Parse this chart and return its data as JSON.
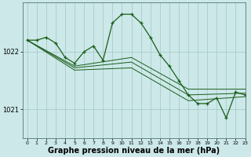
{
  "background_color": "#cce8e8",
  "grid_color": "#aacccc",
  "line_color": "#1a5e1a",
  "xlabel": "Graphe pression niveau de la mer (hPa)",
  "xlabel_fontsize": 7,
  "ylabel_ticks": [
    1021,
    1022
  ],
  "xlim": [
    -0.5,
    23
  ],
  "ylim": [
    1020.5,
    1022.85
  ],
  "xticks": [
    0,
    1,
    2,
    3,
    4,
    5,
    6,
    7,
    8,
    9,
    10,
    11,
    12,
    13,
    14,
    15,
    16,
    17,
    18,
    19,
    20,
    21,
    22,
    23
  ],
  "series": [
    {
      "x": [
        0,
        1,
        2,
        3,
        4,
        5,
        6,
        7,
        8,
        9,
        10,
        11,
        12,
        13,
        14,
        15,
        16,
        17,
        18,
        19,
        20,
        21,
        22,
        23
      ],
      "y": [
        1022.2,
        1022.2,
        1022.25,
        1022.15,
        1021.9,
        1021.8,
        1022.0,
        1022.1,
        1021.85,
        1022.5,
        1022.65,
        1022.65,
        1022.5,
        1022.25,
        1021.95,
        1021.75,
        1021.5,
        1021.25,
        1021.1,
        1021.1,
        1021.2,
        1020.85,
        1021.3,
        1021.25
      ],
      "marker": true
    },
    {
      "x": [
        0,
        5,
        11,
        17,
        23
      ],
      "y": [
        1022.2,
        1021.75,
        1021.9,
        1021.35,
        1021.35
      ],
      "marker": false
    },
    {
      "x": [
        0,
        5,
        11,
        17,
        23
      ],
      "y": [
        1022.2,
        1021.72,
        1021.82,
        1021.25,
        1021.28
      ],
      "marker": false
    },
    {
      "x": [
        0,
        5,
        11,
        17,
        23
      ],
      "y": [
        1022.2,
        1021.68,
        1021.72,
        1021.15,
        1021.22
      ],
      "marker": false
    }
  ]
}
